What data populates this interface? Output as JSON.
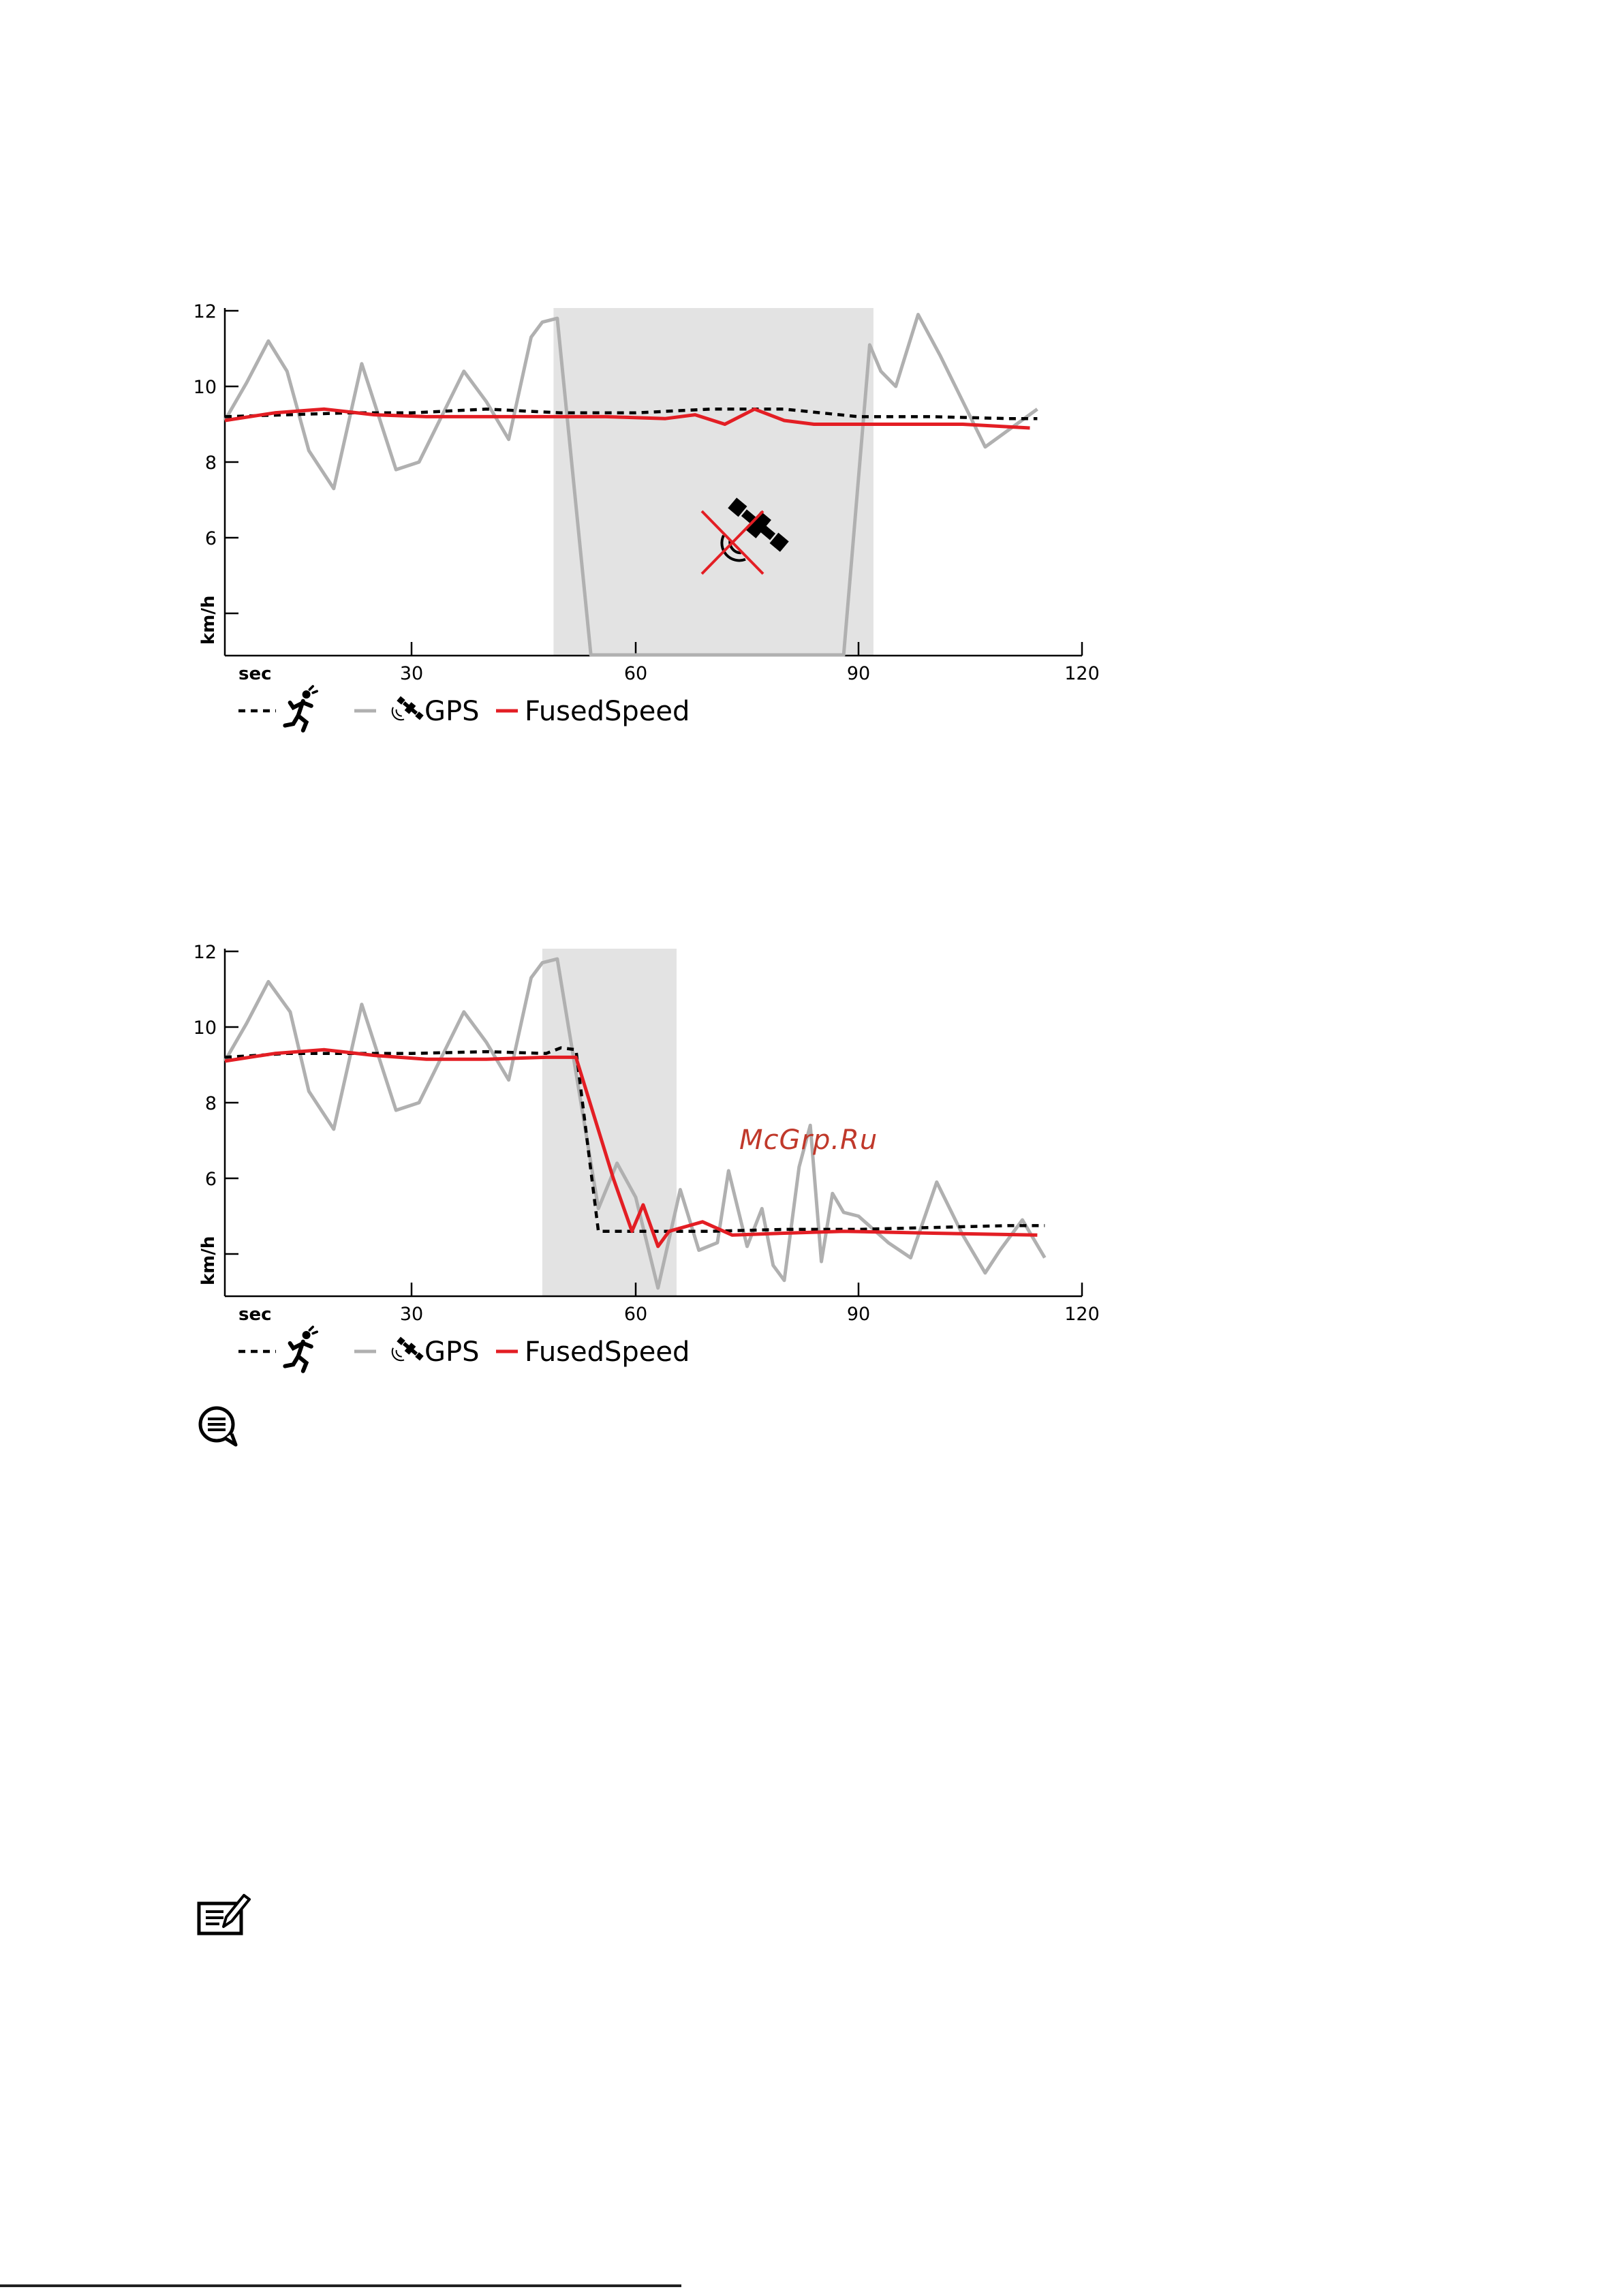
{
  "colors": {
    "gps": "#b0b0b0",
    "fused": "#e31e24",
    "foot_pod": "#000000",
    "shade": "#e3e3e3"
  },
  "watermark": "McGrp.Ru",
  "icons": {
    "satellite": "satellite-icon",
    "no_gps": "satellite-crossed-icon",
    "runner": "runner-icon",
    "info": "speech-bubble-icon",
    "note": "note-pencil-icon"
  },
  "chart_data": [
    {
      "type": "line",
      "ylabel": "km/h",
      "xlabel": "sec",
      "x_ticks": [
        "30",
        "60",
        "90",
        "120"
      ],
      "y_ticks": [
        "12",
        "10",
        "8",
        "6"
      ],
      "xlim": [
        0,
        120
      ],
      "ylim": [
        2.9,
        12
      ],
      "shaded_interval": [
        49,
        92
      ],
      "legend": [
        {
          "key": "foot_pod",
          "label": "",
          "icon": "runner-icon"
        },
        {
          "key": "gps",
          "label": "GPS",
          "icon": "satellite-icon"
        },
        {
          "key": "fused",
          "label": "FusedSpeed",
          "icon": ""
        }
      ],
      "series": [
        {
          "key": "foot_pod",
          "x": [
            0,
            10,
            20,
            30,
            40,
            50,
            60,
            70,
            80,
            90,
            100,
            110,
            114
          ],
          "y": [
            9.2,
            9.25,
            9.3,
            9.3,
            9.4,
            9.3,
            9.3,
            9.4,
            9.4,
            9.2,
            9.2,
            9.15,
            9.15
          ]
        },
        {
          "key": "gps",
          "x": [
            0,
            3.5,
            7,
            10,
            13.5,
            17.5,
            22,
            27.5,
            31,
            37,
            40,
            43,
            46,
            47.5,
            49.5,
            54,
            80,
            88,
            91.5,
            93,
            95,
            98,
            101,
            107,
            114
          ],
          "y": [
            9.1,
            10.1,
            11.2,
            10.4,
            8.3,
            7.3,
            10.6,
            7.8,
            8.0,
            10.4,
            9.6,
            8.6,
            11.3,
            11.7,
            11.8,
            2.9,
            2.9,
            2.9,
            11.1,
            10.4,
            10.0,
            11.9,
            10.8,
            8.4,
            9.4
          ]
        },
        {
          "key": "fused",
          "x": [
            0,
            8,
            16,
            24,
            32,
            40,
            48,
            56,
            64,
            68,
            72,
            76,
            80,
            84,
            88,
            96,
            104,
            113
          ],
          "y": [
            9.1,
            9.3,
            9.4,
            9.25,
            9.2,
            9.2,
            9.2,
            9.2,
            9.15,
            9.25,
            9.0,
            9.4,
            9.1,
            9.0,
            9.0,
            9.0,
            9.0,
            8.9
          ]
        }
      ]
    },
    {
      "type": "line",
      "ylabel": "km/h",
      "xlabel": "sec",
      "x_ticks": [
        "30",
        "60",
        "90",
        "120"
      ],
      "y_ticks": [
        "12",
        "10",
        "8",
        "6"
      ],
      "xlim": [
        0,
        120
      ],
      "ylim": [
        2.9,
        12
      ],
      "shaded_interval": [
        47.5,
        65.5
      ],
      "legend": [
        {
          "key": "foot_pod",
          "label": "",
          "icon": "runner-icon"
        },
        {
          "key": "gps",
          "label": "GPS",
          "icon": "satellite-icon"
        },
        {
          "key": "fused",
          "label": "FusedSpeed",
          "icon": ""
        }
      ],
      "series": [
        {
          "key": "foot_pod",
          "x": [
            0,
            10,
            20,
            30,
            40,
            48,
            50,
            52,
            55,
            60,
            70,
            80,
            90,
            100,
            110,
            115
          ],
          "y": [
            9.2,
            9.3,
            9.3,
            9.3,
            9.35,
            9.3,
            9.45,
            9.4,
            4.6,
            4.6,
            4.6,
            4.65,
            4.65,
            4.7,
            4.75,
            4.75
          ]
        },
        {
          "key": "gps",
          "x": [
            0,
            3.5,
            7,
            10.5,
            13.5,
            17.5,
            22,
            27.5,
            31,
            37,
            40,
            43,
            46,
            47.5,
            49.5,
            55,
            57.5,
            60,
            63,
            66,
            68.5,
            71,
            72.5,
            75,
            77,
            78.5,
            80,
            82,
            83.5,
            85,
            86.5,
            88,
            90,
            94,
            97,
            100.5,
            104,
            107,
            109,
            112,
            115
          ],
          "y": [
            9.1,
            10.1,
            11.2,
            10.4,
            8.3,
            7.3,
            10.6,
            7.8,
            8.0,
            10.4,
            9.6,
            8.6,
            11.3,
            11.7,
            11.8,
            5.2,
            6.4,
            5.5,
            3.1,
            5.7,
            4.1,
            4.3,
            6.2,
            4.2,
            5.2,
            3.7,
            3.3,
            6.3,
            7.4,
            3.8,
            5.6,
            5.1,
            5.0,
            4.3,
            3.9,
            5.9,
            4.5,
            3.5,
            4.1,
            4.9,
            3.9
          ]
        },
        {
          "key": "fused",
          "x": [
            0,
            8,
            16,
            24,
            32,
            40,
            48,
            52,
            57,
            59.5,
            61,
            63,
            64.5,
            69,
            73,
            80,
            88,
            100,
            114
          ],
          "y": [
            9.1,
            9.3,
            9.4,
            9.25,
            9.15,
            9.15,
            9.2,
            9.2,
            6.0,
            4.6,
            5.3,
            4.2,
            4.6,
            4.85,
            4.5,
            4.55,
            4.6,
            4.55,
            4.5
          ]
        }
      ]
    }
  ]
}
